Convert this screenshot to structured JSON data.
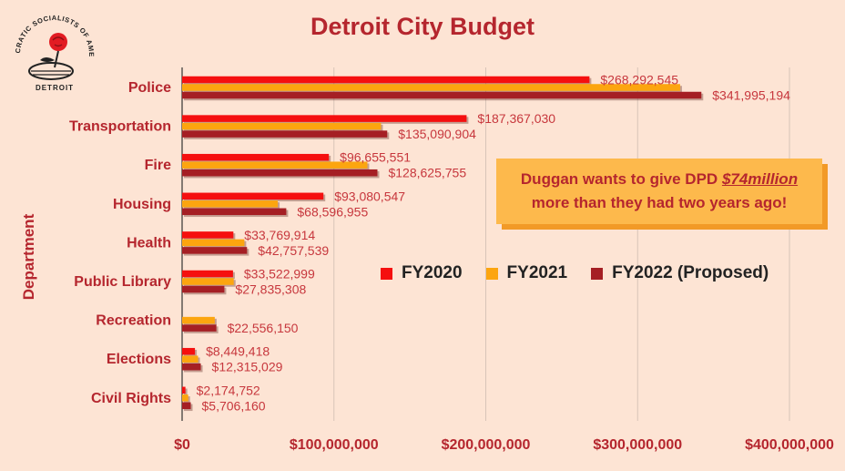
{
  "logo": {
    "top_text": "DEMOCRATIC SOCIALISTS OF AMERICA",
    "bottom_text": "DETROIT"
  },
  "callout": {
    "line1_prefix": "Duggan wants to give DPD ",
    "line1_emphasis": "$74million",
    "line2": "more than they had two years ago!"
  },
  "colors": {
    "FY2020": "#f50f0f",
    "FY2021": "#fca50f",
    "FY2022": "#a51f24",
    "text": "#b5262e",
    "grid": "#d8c4b8"
  },
  "chart_data": {
    "type": "bar",
    "orientation": "horizontal",
    "title": "Detroit City Budget",
    "xlabel": "",
    "ylabel": "Department",
    "xlim": [
      0,
      400000000
    ],
    "x_ticks": [
      "$0",
      "$100,000,000",
      "$200,000,000",
      "$300,000,000",
      "$400,000,000"
    ],
    "grid": true,
    "legend_position": "right-middle",
    "categories": [
      "Police",
      "Transportation",
      "Fire",
      "Housing",
      "Health",
      "Public Library",
      "Recreation",
      "Elections",
      "Civil Rights"
    ],
    "series": [
      {
        "name": "FY2020",
        "values": [
          268292545,
          187367030,
          96655551,
          93080547,
          33769914,
          33522999,
          0,
          8449418,
          2174752
        ]
      },
      {
        "name": "FY2021",
        "values": [
          328000000,
          131000000,
          122000000,
          63000000,
          41000000,
          34000000,
          21500000,
          10500000,
          4000000
        ]
      },
      {
        "name": "FY2022 (Proposed)",
        "values": [
          341995194,
          135090904,
          128625755,
          68596955,
          42757539,
          27835308,
          22556150,
          12315029,
          5706160
        ]
      }
    ],
    "data_labels": [
      [
        "$268,292,545",
        "$187,367,030",
        "$96,655,551",
        "$93,080,547",
        "$33,769,914",
        "$33,522,999",
        "",
        "$8,449,418",
        "$2,174,752"
      ],
      [
        "",
        "",
        "",
        "",
        "",
        "",
        "",
        "",
        ""
      ],
      [
        "$341,995,194",
        "$135,090,904",
        "$128,625,755",
        "$68,596,955",
        "$42,757,539",
        "$27,835,308",
        "$22,556,150",
        "$12,315,029",
        "$5,706,160"
      ]
    ]
  }
}
